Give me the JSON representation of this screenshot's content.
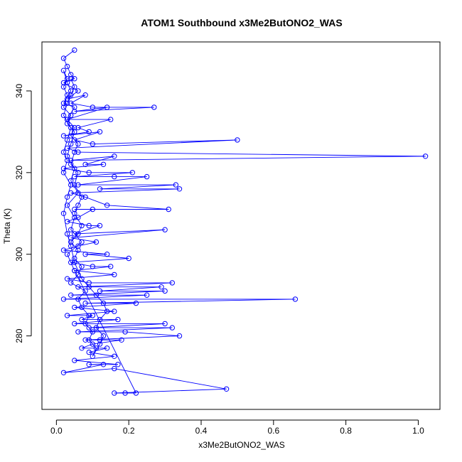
{
  "chart_data": {
    "type": "scatter",
    "title": "ATOM1 Southbound x3Me2ButONO2_WAS",
    "xlabel": "x3Me2ButONO2_WAS",
    "ylabel": "Theta (K)",
    "xlim": [
      -0.04,
      1.06
    ],
    "ylim": [
      262,
      352
    ],
    "xticks": [
      0.0,
      0.2,
      0.4,
      0.6,
      0.8,
      1.0
    ],
    "xtick_labels": [
      "0.0",
      "0.2",
      "0.4",
      "0.6",
      "0.8",
      "1.0"
    ],
    "yticks": [
      280,
      300,
      320,
      340
    ],
    "ytick_labels": [
      "280",
      "300",
      "320",
      "340"
    ],
    "grid": false,
    "color": "#0000ff",
    "marker": "open-circle",
    "connected": true,
    "series": [
      {
        "points": [
          [
            0.05,
            350
          ],
          [
            0.02,
            348
          ],
          [
            0.03,
            346
          ],
          [
            0.04,
            344
          ],
          [
            0.05,
            343
          ],
          [
            0.02,
            342
          ],
          [
            0.06,
            340
          ],
          [
            0.03,
            338
          ],
          [
            0.08,
            339
          ],
          [
            0.04,
            337
          ],
          [
            0.1,
            336
          ],
          [
            0.27,
            336
          ],
          [
            0.05,
            335
          ],
          [
            0.14,
            336
          ],
          [
            0.03,
            333
          ],
          [
            0.15,
            333
          ],
          [
            0.06,
            331
          ],
          [
            0.09,
            330
          ],
          [
            0.02,
            329
          ],
          [
            0.12,
            330
          ],
          [
            0.05,
            328
          ],
          [
            0.1,
            327
          ],
          [
            0.5,
            328
          ],
          [
            0.03,
            326
          ],
          [
            0.06,
            325
          ],
          [
            1.02,
            324
          ],
          [
            0.04,
            323
          ],
          [
            0.16,
            324
          ],
          [
            0.08,
            322
          ],
          [
            0.13,
            322
          ],
          [
            0.02,
            321
          ],
          [
            0.09,
            320
          ],
          [
            0.21,
            320
          ],
          [
            0.05,
            319
          ],
          [
            0.16,
            319
          ],
          [
            0.25,
            319
          ],
          [
            0.06,
            317
          ],
          [
            0.33,
            317
          ],
          [
            0.12,
            316
          ],
          [
            0.34,
            316
          ],
          [
            0.04,
            315
          ],
          [
            0.08,
            314
          ],
          [
            0.14,
            312
          ],
          [
            0.31,
            311
          ],
          [
            0.05,
            311
          ],
          [
            0.1,
            311
          ],
          [
            0.06,
            309
          ],
          [
            0.03,
            308
          ],
          [
            0.09,
            307
          ],
          [
            0.12,
            307
          ],
          [
            0.05,
            305
          ],
          [
            0.3,
            306
          ],
          [
            0.04,
            304
          ],
          [
            0.11,
            303
          ],
          [
            0.06,
            302
          ],
          [
            0.02,
            301
          ],
          [
            0.14,
            300
          ],
          [
            0.08,
            300
          ],
          [
            0.2,
            299
          ],
          [
            0.04,
            298
          ],
          [
            0.1,
            297
          ],
          [
            0.15,
            297
          ],
          [
            0.05,
            296
          ],
          [
            0.16,
            295
          ],
          [
            0.03,
            294
          ],
          [
            0.09,
            293
          ],
          [
            0.32,
            293
          ],
          [
            0.06,
            292
          ],
          [
            0.29,
            292
          ],
          [
            0.12,
            291
          ],
          [
            0.3,
            291
          ],
          [
            0.04,
            290
          ],
          [
            0.25,
            290
          ],
          [
            0.02,
            289
          ],
          [
            0.66,
            289
          ],
          [
            0.08,
            288
          ],
          [
            0.22,
            288
          ],
          [
            0.05,
            287
          ],
          [
            0.16,
            286
          ],
          [
            0.03,
            285
          ],
          [
            0.1,
            285
          ],
          [
            0.07,
            284
          ],
          [
            0.17,
            284
          ],
          [
            0.05,
            283
          ],
          [
            0.3,
            283
          ],
          [
            0.09,
            282
          ],
          [
            0.32,
            282
          ],
          [
            0.06,
            281
          ],
          [
            0.19,
            281
          ],
          [
            0.34,
            280
          ],
          [
            0.08,
            279
          ],
          [
            0.12,
            279
          ],
          [
            0.18,
            279
          ],
          [
            0.1,
            278
          ],
          [
            0.07,
            277
          ],
          [
            0.14,
            277
          ],
          [
            0.09,
            276
          ],
          [
            0.16,
            275
          ],
          [
            0.05,
            274
          ],
          [
            0.17,
            273
          ],
          [
            0.09,
            273
          ],
          [
            0.13,
            273
          ],
          [
            0.02,
            271
          ],
          [
            0.16,
            272
          ],
          [
            0.47,
            267
          ],
          [
            0.16,
            266
          ],
          [
            0.19,
            266
          ],
          [
            0.22,
            266
          ],
          [
            0.05,
            296
          ],
          [
            0.03,
            300
          ],
          [
            0.07,
            303
          ],
          [
            0.04,
            306
          ],
          [
            0.05,
            309
          ],
          [
            0.03,
            312
          ],
          [
            0.06,
            315
          ],
          [
            0.04,
            318
          ],
          [
            0.05,
            321
          ],
          [
            0.03,
            324
          ],
          [
            0.04,
            327
          ],
          [
            0.05,
            330
          ],
          [
            0.03,
            332
          ],
          [
            0.04,
            334
          ],
          [
            0.02,
            336
          ],
          [
            0.03,
            339
          ],
          [
            0.02,
            341
          ],
          [
            0.03,
            343
          ],
          [
            0.02,
            345
          ],
          [
            0.03,
            342
          ],
          [
            0.04,
            340
          ],
          [
            0.02,
            337
          ],
          [
            0.05,
            336
          ],
          [
            0.03,
            333
          ],
          [
            0.05,
            331
          ],
          [
            0.04,
            329
          ],
          [
            0.06,
            327
          ],
          [
            0.05,
            325
          ],
          [
            0.04,
            322
          ],
          [
            0.06,
            320
          ],
          [
            0.05,
            317
          ],
          [
            0.07,
            314
          ],
          [
            0.06,
            312
          ],
          [
            0.05,
            310
          ],
          [
            0.07,
            307
          ],
          [
            0.06,
            305
          ],
          [
            0.04,
            303
          ],
          [
            0.06,
            301
          ],
          [
            0.05,
            299
          ],
          [
            0.07,
            297
          ],
          [
            0.06,
            295
          ],
          [
            0.04,
            293
          ],
          [
            0.08,
            291
          ],
          [
            0.06,
            289
          ],
          [
            0.07,
            287
          ],
          [
            0.09,
            285
          ],
          [
            0.08,
            283
          ],
          [
            0.1,
            281
          ],
          [
            0.09,
            279
          ],
          [
            0.11,
            277
          ],
          [
            0.1,
            275
          ],
          [
            0.12,
            278
          ],
          [
            0.13,
            280
          ],
          [
            0.11,
            282
          ],
          [
            0.12,
            284
          ],
          [
            0.14,
            286
          ],
          [
            0.13,
            288
          ],
          [
            0.11,
            290
          ],
          [
            0.09,
            292
          ],
          [
            0.07,
            294
          ],
          [
            0.05,
            298
          ],
          [
            0.04,
            302
          ],
          [
            0.03,
            305
          ],
          [
            0.02,
            310
          ],
          [
            0.03,
            314
          ],
          [
            0.04,
            317
          ],
          [
            0.02,
            320
          ],
          [
            0.03,
            323
          ],
          [
            0.02,
            325
          ],
          [
            0.03,
            328
          ],
          [
            0.04,
            331
          ],
          [
            0.02,
            334
          ],
          [
            0.03,
            337
          ],
          [
            0.04,
            339
          ],
          [
            0.05,
            341
          ],
          [
            0.04,
            343
          ]
        ]
      }
    ]
  }
}
